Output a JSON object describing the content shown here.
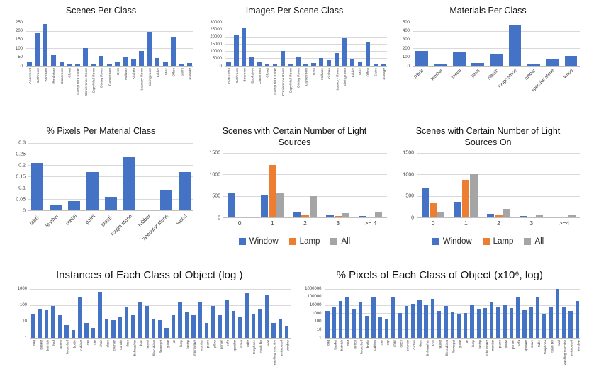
{
  "colors": {
    "bar_blue": "#4472C4",
    "bar_orange": "#ED7D31",
    "bar_gray": "#A5A5A5",
    "gridline": "#D9D9D9",
    "axis": "#BFBFBF",
    "text": "#404040"
  },
  "chart_data": [
    {
      "id": "scenes-per-class",
      "type": "bar",
      "title": "Scenes Per Class",
      "scale": "linear",
      "ylim": [
        0,
        250
      ],
      "yticks": [
        0,
        50,
        100,
        150,
        200,
        250
      ],
      "grid": true,
      "legend_position": "none",
      "label_rotation": "vertical",
      "color": "#4472C4",
      "categories": [
        "Apartment",
        "Bathroom",
        "Bedroom",
        "Bookstore",
        "Classroom",
        "Closet",
        "Computer Cluster",
        "Conference Room",
        "Copy/Mail Room",
        "Dining Room",
        "Game room",
        "Gym",
        "Hallway",
        "Kitchen",
        "Laundry Room",
        "Living room",
        "Lobby",
        "Misc",
        "Office",
        "Stairs",
        "Storage"
      ],
      "values": [
        25,
        190,
        240,
        60,
        20,
        10,
        5,
        100,
        10,
        55,
        8,
        18,
        50,
        35,
        85,
        195,
        45,
        18,
        165,
        10,
        15
      ]
    },
    {
      "id": "images-per-scene-class",
      "type": "bar",
      "title": "Images Per Scene Class",
      "scale": "linear",
      "ylim": [
        0,
        30000
      ],
      "yticks": [
        0,
        5000,
        10000,
        15000,
        20000,
        25000,
        30000
      ],
      "grid": true,
      "legend_position": "none",
      "label_rotation": "vertical",
      "color": "#4472C4",
      "categories": [
        "Apartment",
        "Bathroom",
        "Bedroom",
        "Bookstore",
        "Classroom",
        "Closet",
        "Computer Cluster",
        "Conference Room",
        "Copy/Mail Room",
        "Dining Room",
        "Game room",
        "Gym",
        "Hallway",
        "Kitchen",
        "Laundry Room",
        "Living room",
        "Lobby",
        "Misc",
        "Office",
        "Stairs",
        "Storage"
      ],
      "values": [
        3000,
        21000,
        26000,
        5500,
        2500,
        1200,
        800,
        10000,
        1200,
        6000,
        1000,
        2000,
        5000,
        4000,
        8500,
        19000,
        4500,
        2500,
        16000,
        1000,
        1500
      ]
    },
    {
      "id": "materials-per-class",
      "type": "bar",
      "title": "Materials Per Class",
      "scale": "linear",
      "ylim": [
        0,
        500
      ],
      "yticks": [
        0,
        100,
        200,
        300,
        400,
        500
      ],
      "grid": true,
      "legend_position": "none",
      "label_rotation": "angled",
      "color": "#4472C4",
      "categories": [
        "fabric",
        "leather",
        "metal",
        "paint",
        "plastic",
        "rough stone",
        "rubber",
        "specular stone",
        "wood"
      ],
      "values": [
        170,
        15,
        160,
        30,
        140,
        470,
        10,
        80,
        110
      ]
    },
    {
      "id": "pct-pixels-per-material-class",
      "type": "bar",
      "title": "% Pixels Per Material Class",
      "scale": "linear",
      "ylim": [
        0,
        0.3
      ],
      "yticks": [
        0,
        0.05,
        0.1,
        0.15,
        0.2,
        0.25,
        0.3
      ],
      "grid": true,
      "legend_position": "none",
      "label_rotation": "angled",
      "color": "#4472C4",
      "categories": [
        "fabric",
        "leather",
        "metal",
        "paint",
        "plastic",
        "rough stone",
        "rubber",
        "specular stone",
        "wood"
      ],
      "values": [
        0.21,
        0.02,
        0.04,
        0.17,
        0.06,
        0.24,
        0.003,
        0.09,
        0.17
      ]
    },
    {
      "id": "scenes-light-sources",
      "type": "bar",
      "title": "Scenes with Certain Number of Light Sources",
      "scale": "linear",
      "ylim": [
        0,
        1500
      ],
      "yticks": [
        0,
        500,
        1000,
        1500
      ],
      "grid": true,
      "legend_position": "bottom",
      "label_rotation": "horizontal",
      "categories": [
        "0",
        "1",
        "2",
        "3",
        ">= 4"
      ],
      "series": [
        {
          "name": "Window",
          "color": "#4472C4",
          "values": [
            580,
            530,
            120,
            50,
            30
          ]
        },
        {
          "name": "Lamp",
          "color": "#ED7D31",
          "values": [
            10,
            1220,
            70,
            30,
            10
          ]
        },
        {
          "name": "All",
          "color": "#A5A5A5",
          "values": [
            5,
            580,
            490,
            100,
            140
          ]
        }
      ]
    },
    {
      "id": "scenes-light-sources-on",
      "type": "bar",
      "title": "Scenes with Certain Number of Light Sources On",
      "scale": "linear",
      "ylim": [
        0,
        1500
      ],
      "yticks": [
        0,
        500,
        1000,
        1500
      ],
      "grid": true,
      "legend_position": "bottom",
      "label_rotation": "horizontal",
      "categories": [
        "0",
        "1",
        "2",
        "3",
        ">=4"
      ],
      "series": [
        {
          "name": "Window",
          "color": "#4472C4",
          "values": [
            700,
            370,
            90,
            30,
            20
          ]
        },
        {
          "name": "Lamp",
          "color": "#ED7D31",
          "values": [
            350,
            880,
            60,
            20,
            10
          ]
        },
        {
          "name": "All",
          "color": "#A5A5A5",
          "values": [
            120,
            1000,
            190,
            50,
            60
          ]
        }
      ]
    },
    {
      "id": "instances-per-object-class",
      "type": "bar",
      "title": "Instances of Each Class of Object (log )",
      "scale": "log",
      "ylim": [
        1,
        1000
      ],
      "yticks": [
        1,
        10,
        100,
        1000
      ],
      "grid": true,
      "legend_position": "none",
      "label_rotation": "vertical",
      "color": "#4472C4",
      "categories": [
        "bag",
        "basket",
        "bathtub",
        "bed",
        "bench",
        "bookshelf",
        "bottle",
        "cabinet",
        "can",
        "cap",
        "chair",
        "clock",
        "counter",
        "curtain",
        "desk",
        "dishwasher",
        "door",
        "faucet",
        "file cabinet",
        "flowerpot",
        "guitar",
        "jar",
        "lamp",
        "laptop",
        "microwave",
        "monitor",
        "piano",
        "pillow",
        "printer",
        "sofa",
        "speaker",
        "stove",
        "table",
        "telephone",
        "trash bin",
        "wall",
        "washing machine",
        "whiteboard",
        "window"
      ],
      "values": [
        30,
        60,
        50,
        90,
        25,
        6,
        3,
        300,
        8,
        4,
        600,
        15,
        12,
        18,
        70,
        25,
        150,
        90,
        15,
        12,
        4,
        25,
        140,
        35,
        25,
        160,
        8,
        90,
        25,
        200,
        45,
        20,
        550,
        30,
        60,
        400,
        8,
        15,
        5
      ]
    },
    {
      "id": "pct-pixels-per-object-class",
      "type": "bar",
      "title": "% Pixels of Each Class of Object (x10⁶, log)",
      "scale": "log",
      "ylim": [
        1,
        1000000
      ],
      "yticks": [
        1,
        10,
        100,
        1000,
        10000,
        100000,
        1000000
      ],
      "grid": true,
      "legend_position": "none",
      "label_rotation": "vertical",
      "color": "#4472C4",
      "categories": [
        "bag",
        "basket",
        "bathtub",
        "bed",
        "bench",
        "bookshelf",
        "bottle",
        "cabinet",
        "can",
        "cap",
        "chair",
        "clock",
        "counter",
        "curtain",
        "desk",
        "dishwasher",
        "door",
        "faucet",
        "file cabinet",
        "flowerpot",
        "guitar",
        "jar",
        "lamp",
        "laptop",
        "microwave",
        "monitor",
        "piano",
        "pillow",
        "printer",
        "sofa",
        "speaker",
        "stove",
        "table",
        "telephone",
        "trash bin",
        "wall",
        "washing machine",
        "whiteboard",
        "window"
      ],
      "values": [
        2000,
        5000,
        30000,
        90000,
        3000,
        20000,
        500,
        100000,
        300,
        200,
        90000,
        1000,
        8000,
        15000,
        40000,
        9000,
        60000,
        2000,
        8000,
        1500,
        800,
        1000,
        10000,
        3000,
        4000,
        20000,
        5000,
        9000,
        4000,
        80000,
        2500,
        6000,
        90000,
        800,
        5000,
        900000,
        7000,
        2000,
        30000
      ]
    }
  ]
}
